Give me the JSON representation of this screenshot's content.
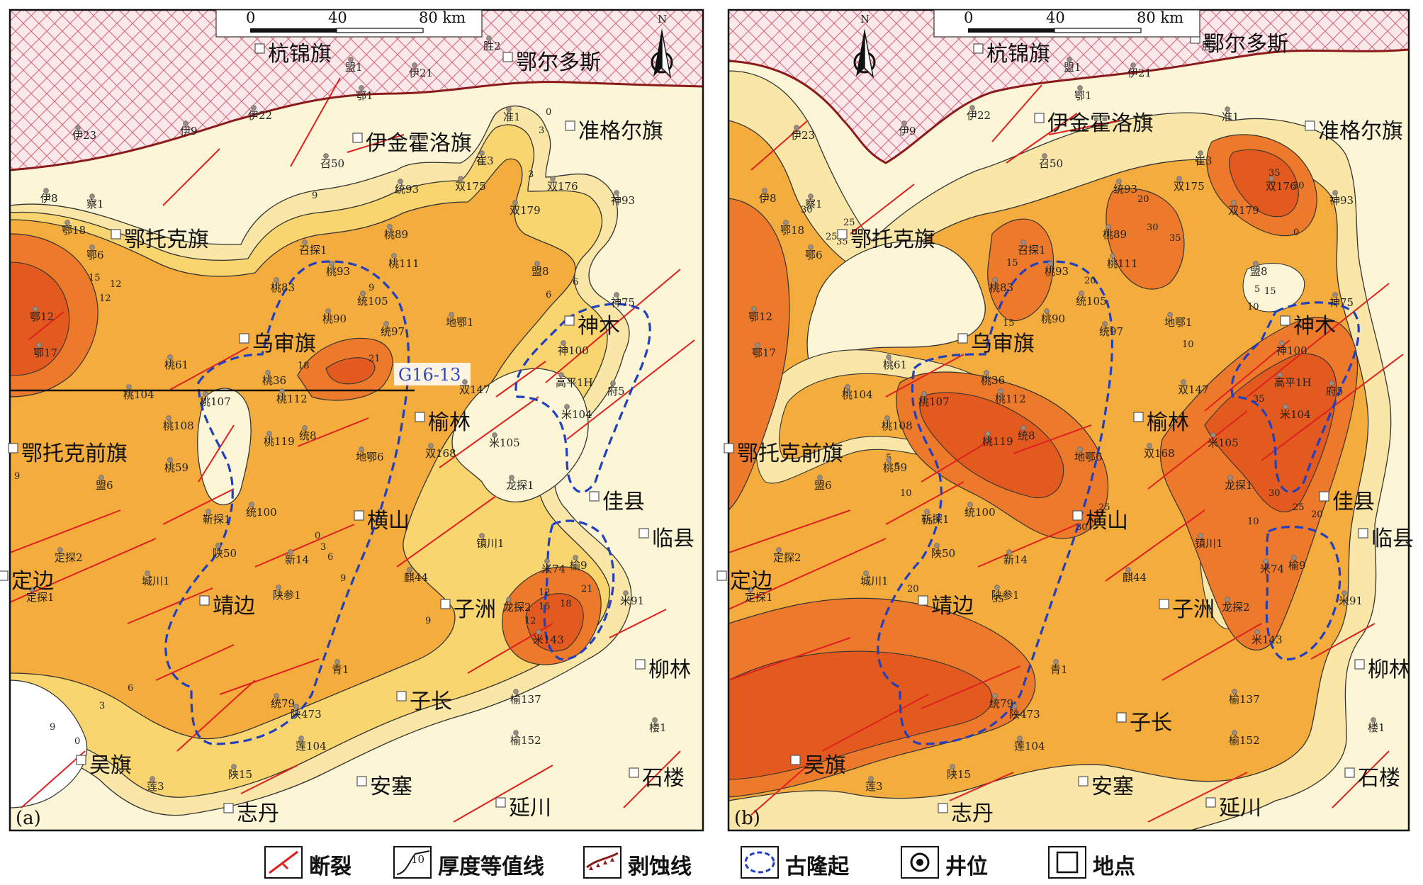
{
  "panels": [
    {
      "id": "a",
      "label": "(a)",
      "section_label": "G16-13",
      "contour_labels": [
        "0",
        "3",
        "3",
        "6",
        "6",
        "9",
        "9",
        "9",
        "9",
        "12",
        "12",
        "12",
        "15",
        "18",
        "21",
        "0",
        "3",
        "6",
        "9",
        "12",
        "15",
        "18",
        "21",
        "0",
        "3",
        "6",
        "9"
      ]
    },
    {
      "id": "b",
      "label": "(b)",
      "contour_labels": [
        "0",
        "5",
        "10",
        "15",
        "20",
        "25",
        "30",
        "35",
        "25",
        "35",
        "30",
        "10",
        "15",
        "20",
        "30",
        "35",
        "0",
        "5",
        "10",
        "15",
        "35",
        "30",
        "25",
        "20",
        "25",
        "30",
        "35",
        "5",
        "10",
        "15",
        "20"
      ]
    }
  ],
  "scale_bar": {
    "ticks": [
      "0",
      "40",
      "80 km"
    ]
  },
  "north_label": "N",
  "places": [
    "杭锦旗",
    "鄂尔多斯",
    "伊金霍洛旗",
    "准格尔旗",
    "鄂托克旗",
    "乌审旗",
    "神木",
    "榆林",
    "鄂托克前旗",
    "佳县",
    "横山",
    "临县",
    "定边",
    "靖边",
    "子洲",
    "柳林",
    "子长",
    "吴旗",
    "安塞",
    "石楼",
    "志丹",
    "延川"
  ],
  "wells": [
    "胜2",
    "盟1",
    "伊21",
    "鄂1",
    "伊22",
    "伊23",
    "伊9",
    "准1",
    "召50",
    "崔3",
    "伊8",
    "察1",
    "统93",
    "双175",
    "双176",
    "鄂18",
    "双179",
    "神93",
    "鄂6",
    "桃89",
    "召探1",
    "桃93",
    "桃111",
    "盟8",
    "桃83",
    "统105",
    "神75",
    "鄂12",
    "桃90",
    "地鄂1",
    "统97",
    "神100",
    "鄂17",
    "桃61",
    "桃36",
    "双147",
    "高平1H",
    "府5",
    "桃104",
    "桃107",
    "桃112",
    "米104",
    "桃108",
    "统8",
    "米105",
    "桃119",
    "双168",
    "桃59",
    "地鄂6",
    "盟6",
    "龙探1",
    "统100",
    "靳探1",
    "镇川1",
    "陕50",
    "定探2",
    "新14",
    "米74",
    "榆9",
    "城川1",
    "陕参1",
    "龙探2",
    "麒44",
    "定探1",
    "米91",
    "米143",
    "青1",
    "榆137",
    "统79",
    "陕473",
    "楼1",
    "莲104",
    "榆152",
    "陕15",
    "莲3"
  ],
  "legend": [
    {
      "icon": "fault-icon",
      "label": "断裂"
    },
    {
      "icon": "isopach-icon",
      "label": "厚度等值线",
      "sample": "10"
    },
    {
      "icon": "erosion-line-icon",
      "label": "剥蚀线"
    },
    {
      "icon": "paleo-uplift-icon",
      "label": "古隆起"
    },
    {
      "icon": "well-icon",
      "label": "井位"
    },
    {
      "icon": "place-icon",
      "label": "地点"
    }
  ],
  "colors": {
    "pale": "#fcf6d6",
    "light": "#fae7a8",
    "yellow": "#f8d56e",
    "orange": "#f4ac3c",
    "deep": "#ec7a2a",
    "red": "#e35a1e",
    "fault": "#e02020",
    "uplift": "#2040c0",
    "erosion": "#8b1a1a"
  }
}
